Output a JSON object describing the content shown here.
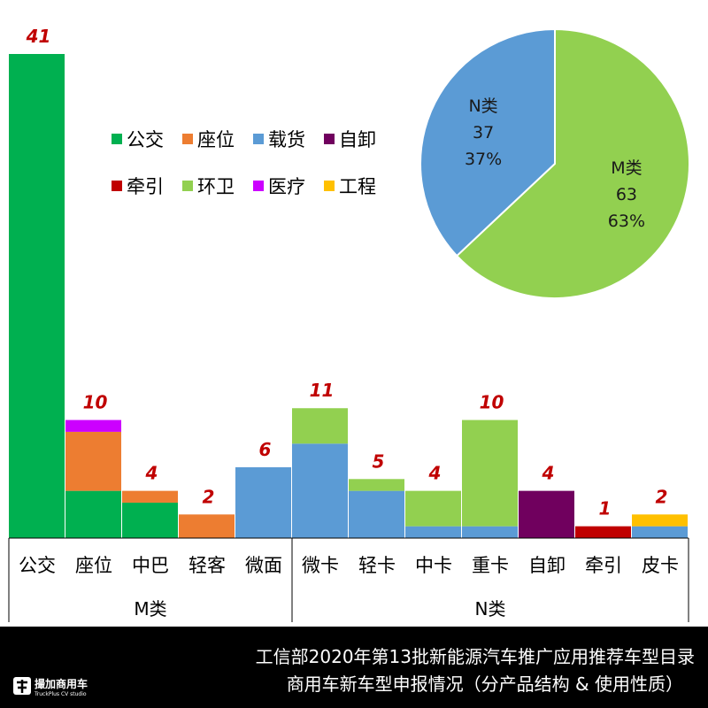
{
  "chart_data": [
    {
      "type": "bar",
      "stacked": true,
      "categories": [
        "公交",
        "座位",
        "中巴",
        "轻客",
        "微面",
        "微卡",
        "轻卡",
        "中卡",
        "重卡",
        "自卸",
        "牵引",
        "皮卡"
      ],
      "groups": [
        {
          "label": "M类",
          "categories": [
            "公交",
            "座位",
            "中巴",
            "轻客",
            "微面"
          ]
        },
        {
          "label": "N类",
          "categories": [
            "微卡",
            "轻卡",
            "中卡",
            "重卡",
            "自卸",
            "牵引",
            "皮卡"
          ]
        }
      ],
      "series": [
        {
          "name": "公交",
          "color": "#00b050",
          "values": [
            41,
            4,
            3,
            0,
            0,
            0,
            0,
            0,
            0,
            0,
            0,
            0
          ]
        },
        {
          "name": "座位",
          "color": "#ed7d31",
          "values": [
            0,
            5,
            1,
            2,
            0,
            0,
            0,
            0,
            0,
            0,
            0,
            0
          ]
        },
        {
          "name": "载货",
          "color": "#5b9bd5",
          "values": [
            0,
            0,
            0,
            0,
            6,
            8,
            4,
            1,
            1,
            0,
            0,
            1
          ]
        },
        {
          "name": "自卸",
          "color": "#70005e",
          "values": [
            0,
            0,
            0,
            0,
            0,
            0,
            0,
            0,
            0,
            4,
            0,
            0
          ]
        },
        {
          "name": "牵引",
          "color": "#c00000",
          "values": [
            0,
            0,
            0,
            0,
            0,
            0,
            0,
            0,
            0,
            0,
            1,
            0
          ]
        },
        {
          "name": "环卫",
          "color": "#92d050",
          "values": [
            0,
            0,
            0,
            0,
            0,
            3,
            1,
            3,
            9,
            0,
            0,
            0
          ]
        },
        {
          "name": "医疗",
          "color": "#cc00ff",
          "values": [
            0,
            1,
            0,
            0,
            0,
            0,
            0,
            0,
            0,
            0,
            0,
            0
          ]
        },
        {
          "name": "工程",
          "color": "#ffc000",
          "values": [
            0,
            0,
            0,
            0,
            0,
            0,
            0,
            0,
            0,
            0,
            0,
            1
          ]
        }
      ],
      "totals": [
        41,
        10,
        4,
        2,
        6,
        11,
        5,
        4,
        10,
        4,
        1,
        2
      ],
      "ylim": [
        0,
        41
      ],
      "grid": false,
      "legend_placement": "top-left-inside",
      "legend": [
        [
          "公交",
          "座位",
          "载货",
          "自卸"
        ],
        [
          "牵引",
          "环卫",
          "医疗",
          "工程"
        ]
      ]
    },
    {
      "type": "pie",
      "slices": [
        {
          "name": "M类",
          "value": 63,
          "percent": "63%",
          "color": "#92d050"
        },
        {
          "name": "N类",
          "value": 37,
          "percent": "37%",
          "color": "#5b9bd5"
        }
      ],
      "legend_placement": "none"
    }
  ],
  "footer": {
    "title_line1": "工信部2020年第13批新能源汽车推广应用推荐车型目录",
    "title_line2": "商用车新车型申报情况（分产品结构 & 使用性质）",
    "logo_name": "撮加商用车",
    "logo_sub": "TruckPlus CV studio"
  }
}
